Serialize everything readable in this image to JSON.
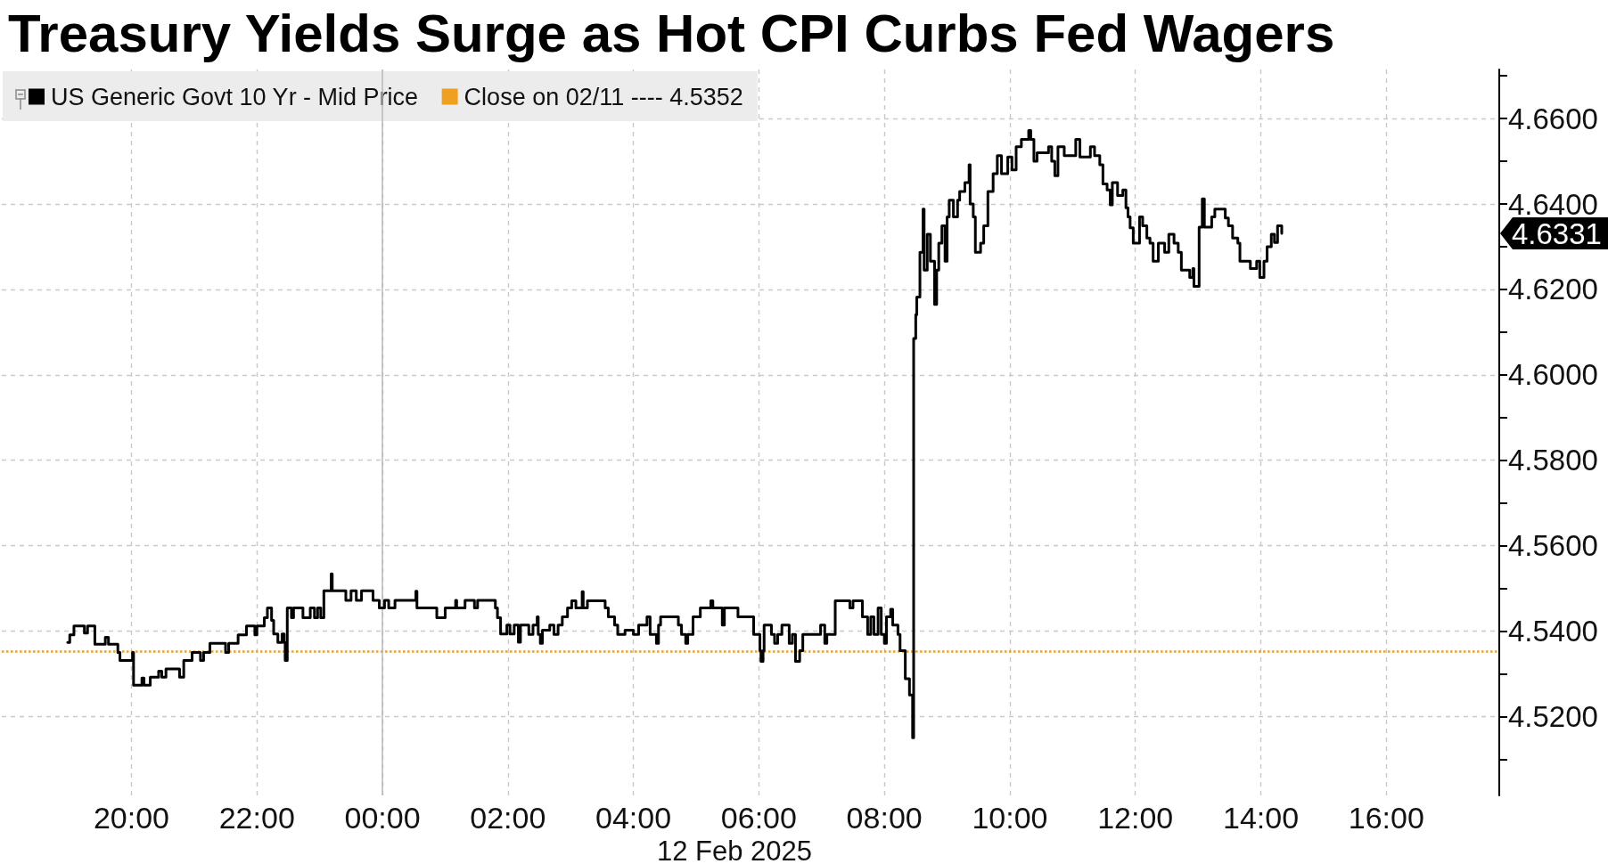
{
  "chart_data": {
    "type": "step",
    "title": "Treasury Yields Surge as Hot CPI Curbs Fed Wagers",
    "xlabel": "12 Feb 2025",
    "x": [
      "2025-02-11T18:59",
      "2025-02-11T19:01",
      "2025-02-11T19:05",
      "2025-02-11T19:15",
      "2025-02-11T19:18",
      "2025-02-11T19:25",
      "2025-02-11T19:35",
      "2025-02-11T19:38",
      "2025-02-11T19:47",
      "2025-02-11T19:49",
      "2025-02-11T20:01",
      "2025-02-11T20:02",
      "2025-02-11T20:10",
      "2025-02-11T20:12",
      "2025-02-11T20:18",
      "2025-02-11T20:26",
      "2025-02-11T20:29",
      "2025-02-11T20:33",
      "2025-02-11T20:46",
      "2025-02-11T20:50",
      "2025-02-11T20:58",
      "2025-02-11T21:06",
      "2025-02-11T21:09",
      "2025-02-11T21:15",
      "2025-02-11T21:30",
      "2025-02-11T21:33",
      "2025-02-11T21:42",
      "2025-02-11T21:50",
      "2025-02-11T21:58",
      "2025-02-11T22:00",
      "2025-02-11T22:07",
      "2025-02-11T22:10",
      "2025-02-11T22:14",
      "2025-02-11T22:16",
      "2025-02-11T22:20",
      "2025-02-11T22:24",
      "2025-02-11T22:26",
      "2025-02-11T22:27",
      "2025-02-11T22:29",
      "2025-02-11T22:33",
      "2025-02-11T22:35",
      "2025-02-11T22:44",
      "2025-02-11T22:51",
      "2025-02-11T22:55",
      "2025-02-11T22:58",
      "2025-02-11T23:01",
      "2025-02-11T23:04",
      "2025-02-11T23:11",
      "2025-02-11T23:12",
      "2025-02-11T23:25",
      "2025-02-11T23:30",
      "2025-02-11T23:35",
      "2025-02-11T23:40",
      "2025-02-11T23:51",
      "2025-02-11T23:57",
      "2025-02-12T00:02",
      "2025-02-12T00:06",
      "2025-02-12T00:12",
      "2025-02-12T00:32",
      "2025-02-12T00:33",
      "2025-02-12T00:52",
      "2025-02-12T01:00",
      "2025-02-12T01:10",
      "2025-02-12T01:11",
      "2025-02-12T01:19",
      "2025-02-12T01:28",
      "2025-02-12T01:31",
      "2025-02-12T01:48",
      "2025-02-12T01:50",
      "2025-02-12T01:53",
      "2025-02-12T01:59",
      "2025-02-12T02:02",
      "2025-02-12T02:06",
      "2025-02-12T02:10",
      "2025-02-12T02:12",
      "2025-02-12T02:20",
      "2025-02-12T02:24",
      "2025-02-12T02:28",
      "2025-02-12T02:29",
      "2025-02-12T02:31",
      "2025-02-12T02:33",
      "2025-02-12T02:40",
      "2025-02-12T02:44",
      "2025-02-12T02:48",
      "2025-02-12T02:52",
      "2025-02-12T02:57",
      "2025-02-12T03:01",
      "2025-02-12T03:05",
      "2025-02-12T03:11",
      "2025-02-12T03:12",
      "2025-02-12T03:16",
      "2025-02-12T03:33",
      "2025-02-12T03:36",
      "2025-02-12T03:42",
      "2025-02-12T03:45",
      "2025-02-12T03:52",
      "2025-02-12T04:00",
      "2025-02-12T04:05",
      "2025-02-12T04:13",
      "2025-02-12T04:16",
      "2025-02-12T04:22",
      "2025-02-12T04:24",
      "2025-02-12T04:26",
      "2025-02-12T04:43",
      "2025-02-12T04:46",
      "2025-02-12T04:50",
      "2025-02-12T04:52",
      "2025-02-12T04:57",
      "2025-02-12T05:04",
      "2025-02-12T05:14",
      "2025-02-12T05:16",
      "2025-02-12T05:25",
      "2025-02-12T05:27",
      "2025-02-12T05:40",
      "2025-02-12T05:55",
      "2025-02-12T06:01",
      "2025-02-12T06:02",
      "2025-02-12T06:04",
      "2025-02-12T06:05",
      "2025-02-12T06:12",
      "2025-02-12T06:15",
      "2025-02-12T06:18",
      "2025-02-12T06:22",
      "2025-02-12T06:29",
      "2025-02-12T06:32",
      "2025-02-12T06:35",
      "2025-02-12T06:39",
      "2025-02-12T06:42",
      "2025-02-12T06:59",
      "2025-02-12T07:03",
      "2025-02-12T07:05",
      "2025-02-12T07:13",
      "2025-02-12T07:27",
      "2025-02-12T07:30",
      "2025-02-12T07:39",
      "2025-02-12T07:44",
      "2025-02-12T07:47",
      "2025-02-12T07:50",
      "2025-02-12T07:54",
      "2025-02-12T07:57",
      "2025-02-12T08:00",
      "2025-02-12T08:02",
      "2025-02-12T08:06",
      "2025-02-12T08:08",
      "2025-02-12T08:13",
      "2025-02-12T08:15",
      "2025-02-12T08:20",
      "2025-02-12T08:24",
      "2025-02-12T08:27",
      "2025-02-12T08:28",
      "2025-02-12T08:30",
      "2025-02-12T08:31",
      "2025-02-12T08:34",
      "2025-02-12T08:37",
      "2025-02-12T08:38",
      "2025-02-12T08:41",
      "2025-02-12T08:44",
      "2025-02-12T08:48",
      "2025-02-12T08:50",
      "2025-02-12T08:52",
      "2025-02-12T08:55",
      "2025-02-12T08:58",
      "2025-02-12T09:00",
      "2025-02-12T09:02",
      "2025-02-12T09:06",
      "2025-02-12T09:10",
      "2025-02-12T09:12",
      "2025-02-12T09:17",
      "2025-02-12T09:21",
      "2025-02-12T09:22",
      "2025-02-12T09:25",
      "2025-02-12T09:27",
      "2025-02-12T09:32",
      "2025-02-12T09:35",
      "2025-02-12T09:39",
      "2025-02-12T09:44",
      "2025-02-12T09:48",
      "2025-02-12T09:52",
      "2025-02-12T09:58",
      "2025-02-12T10:02",
      "2025-02-12T10:06",
      "2025-02-12T10:11",
      "2025-02-12T10:18",
      "2025-02-12T10:20",
      "2025-02-12T10:23",
      "2025-02-12T10:26",
      "2025-02-12T10:37",
      "2025-02-12T10:40",
      "2025-02-12T10:43",
      "2025-02-12T10:46",
      "2025-02-12T10:52",
      "2025-02-12T11:03",
      "2025-02-12T11:07",
      "2025-02-12T11:17",
      "2025-02-12T11:21",
      "2025-02-12T11:26",
      "2025-02-12T11:29",
      "2025-02-12T11:33",
      "2025-02-12T11:36",
      "2025-02-12T11:38",
      "2025-02-12T11:43",
      "2025-02-12T11:48",
      "2025-02-12T11:51",
      "2025-02-12T11:53",
      "2025-02-12T11:55",
      "2025-02-12T11:58",
      "2025-02-12T12:04",
      "2025-02-12T12:07",
      "2025-02-12T12:11",
      "2025-02-12T12:14",
      "2025-02-12T12:17",
      "2025-02-12T12:22",
      "2025-02-12T12:28",
      "2025-02-12T12:32",
      "2025-02-12T12:37",
      "2025-02-12T12:41",
      "2025-02-12T12:44",
      "2025-02-12T12:52",
      "2025-02-12T12:55",
      "2025-02-12T12:56",
      "2025-02-12T13:01",
      "2025-02-12T13:04",
      "2025-02-12T13:06",
      "2025-02-12T13:13",
      "2025-02-12T13:16",
      "2025-02-12T13:26",
      "2025-02-12T13:29",
      "2025-02-12T13:33",
      "2025-02-12T13:38",
      "2025-02-12T13:40",
      "2025-02-12T13:50",
      "2025-02-12T13:56",
      "2025-02-12T13:59",
      "2025-02-12T14:03",
      "2025-02-12T14:06",
      "2025-02-12T14:10",
      "2025-02-12T14:13",
      "2025-02-12T14:16",
      "2025-02-12T14:20"
    ],
    "series": [
      {
        "name": "US Generic Govt 10 Yr - Mid Price",
        "color": "#000000",
        "values": [
          4.5373,
          4.5391,
          4.5412,
          4.5395,
          4.5412,
          4.5369,
          4.5385,
          4.5369,
          4.535,
          4.5331,
          4.535,
          4.5273,
          4.529,
          4.5273,
          4.5292,
          4.5306,
          4.5292,
          4.5311,
          4.5292,
          4.5331,
          4.535,
          4.5331,
          4.535,
          4.5371,
          4.535,
          4.5371,
          4.5391,
          4.5412,
          4.5391,
          4.5412,
          4.5431,
          4.5454,
          4.5425,
          4.5393,
          4.5373,
          4.5393,
          4.5373,
          4.5331,
          4.5454,
          4.5431,
          4.5454,
          4.5431,
          4.5454,
          4.5431,
          4.5454,
          4.5431,
          4.5494,
          4.5534,
          4.5494,
          4.5472,
          4.5494,
          4.5472,
          4.5494,
          4.5472,
          4.5454,
          4.5472,
          4.5454,
          4.5472,
          4.5493,
          4.5454,
          4.5431,
          4.5454,
          4.5472,
          4.5454,
          4.5472,
          4.5454,
          4.5472,
          4.5454,
          4.5431,
          4.5393,
          4.5414,
          4.5393,
          4.5414,
          4.5374,
          4.5414,
          4.5392,
          4.5414,
          4.5433,
          4.5392,
          4.5371,
          4.5402,
          4.5414,
          4.5392,
          4.5414,
          4.5433,
          4.5454,
          4.5471,
          4.5454,
          4.5492,
          4.5454,
          4.5471,
          4.5454,
          4.5433,
          4.5414,
          4.5392,
          4.5402,
          4.5392,
          4.5414,
          4.5433,
          4.5392,
          4.5371,
          4.5414,
          4.5433,
          4.5414,
          4.5392,
          4.5371,
          4.5392,
          4.5433,
          4.5454,
          4.5471,
          4.5454,
          4.5414,
          4.5454,
          4.5433,
          4.5392,
          4.5354,
          4.5329,
          4.5354,
          4.5414,
          4.5392,
          4.5371,
          4.5392,
          4.5414,
          4.5371,
          4.5392,
          4.5329,
          4.5354,
          4.5392,
          4.5414,
          4.5371,
          4.5392,
          4.5471,
          4.5454,
          4.5471,
          4.5433,
          4.5392,
          4.5433,
          4.5392,
          4.5454,
          4.5392,
          4.5371,
          4.5433,
          4.5451,
          4.5414,
          4.5392,
          4.5354,
          4.5288,
          4.525,
          4.515,
          4.6085,
          4.6141,
          4.6182,
          4.6287,
          4.6388,
          4.6245,
          4.6329,
          4.6266,
          4.6165,
          4.6245,
          4.6308,
          4.6349,
          4.6266,
          4.637,
          4.6409,
          4.637,
          4.6409,
          4.6429,
          4.645,
          4.6492,
          4.64,
          4.637,
          4.6287,
          4.6308,
          4.6349,
          4.6429,
          4.6471,
          4.6513,
          4.6471,
          4.651,
          4.648,
          4.6534,
          4.6551,
          4.6572,
          4.6551,
          4.65,
          4.652,
          4.6534,
          4.65,
          4.6466,
          4.6534,
          4.6513,
          4.6551,
          4.651,
          4.6534,
          4.6513,
          4.6492,
          4.6447,
          4.6433,
          4.6398,
          4.645,
          4.642,
          4.6433,
          4.6391,
          4.637,
          4.6344,
          4.6308,
          4.637,
          4.6349,
          4.632,
          4.6308,
          4.6266,
          4.6308,
          4.6287,
          4.6329,
          4.6308,
          4.6287,
          4.6245,
          4.6228,
          4.6249,
          4.6207,
          4.6346,
          4.6412,
          4.6346,
          4.637,
          4.6388,
          4.6367,
          4.6349,
          4.632,
          4.6308,
          4.6266,
          4.6249,
          4.6266,
          4.6228,
          4.6266,
          4.63,
          4.6329,
          4.631,
          4.6349,
          4.6331
        ]
      }
    ],
    "xlim": [
      "2025-02-11T17:56",
      "2025-02-12T17:48"
    ],
    "xticks": [
      {
        "value": "2025-02-11T20:00",
        "label": "20:00"
      },
      {
        "value": "2025-02-11T22:00",
        "label": "22:00"
      },
      {
        "value": "2025-02-12T00:00",
        "label": "00:00"
      },
      {
        "value": "2025-02-12T02:00",
        "label": "02:00"
      },
      {
        "value": "2025-02-12T04:00",
        "label": "04:00"
      },
      {
        "value": "2025-02-12T06:00",
        "label": "06:00"
      },
      {
        "value": "2025-02-12T08:00",
        "label": "08:00"
      },
      {
        "value": "2025-02-12T10:00",
        "label": "10:00"
      },
      {
        "value": "2025-02-12T12:00",
        "label": "12:00"
      },
      {
        "value": "2025-02-12T14:00",
        "label": "14:00"
      },
      {
        "value": "2025-02-12T16:00",
        "label": "16:00"
      }
    ],
    "ylim": [
      4.5015,
      4.6715
    ],
    "yticks": [
      {
        "value": 4.51,
        "label": null
      },
      {
        "value": 4.52,
        "label": "4.5200"
      },
      {
        "value": 4.53,
        "label": null
      },
      {
        "value": 4.54,
        "label": "4.5400"
      },
      {
        "value": 4.55,
        "label": null
      },
      {
        "value": 4.56,
        "label": "4.5600"
      },
      {
        "value": 4.57,
        "label": null
      },
      {
        "value": 4.58,
        "label": "4.5800"
      },
      {
        "value": 4.59,
        "label": null
      },
      {
        "value": 4.6,
        "label": "4.6000"
      },
      {
        "value": 4.61,
        "label": null
      },
      {
        "value": 4.62,
        "label": "4.6200"
      },
      {
        "value": 4.63,
        "label": null
      },
      {
        "value": 4.64,
        "label": "4.6400"
      },
      {
        "value": 4.65,
        "label": null
      },
      {
        "value": 4.66,
        "label": "4.6600"
      },
      {
        "value": 4.67,
        "label": null
      }
    ],
    "ref_lines": [
      {
        "axis": "y",
        "value": 4.5352,
        "label": "Close on 02/11 ---- 4.5352",
        "color": "#f0a020",
        "line_style": "dotted"
      },
      {
        "axis": "x",
        "value": "2025-02-12T00:00",
        "color": "#b8b8b8",
        "line_style": "solid"
      }
    ],
    "annotations": [
      "4.6331"
    ],
    "grid": true,
    "legend": "top left"
  }
}
